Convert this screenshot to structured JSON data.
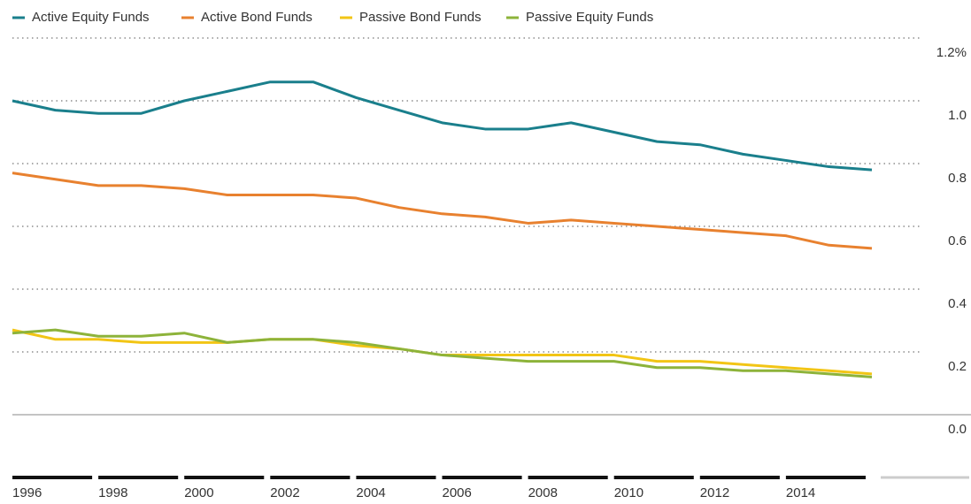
{
  "chart_data": {
    "type": "line",
    "x": [
      1996,
      1997,
      1998,
      1999,
      2000,
      2001,
      2002,
      2003,
      2004,
      2005,
      2006,
      2007,
      2008,
      2009,
      2010,
      2011,
      2012,
      2013,
      2014,
      2015,
      2016
    ],
    "series": [
      {
        "name": "Active Equity Funds",
        "color": "#1a7f8c",
        "values": [
          1.0,
          0.97,
          0.96,
          0.96,
          1.0,
          1.03,
          1.06,
          1.06,
          1.01,
          0.97,
          0.93,
          0.91,
          0.91,
          0.93,
          0.9,
          0.87,
          0.86,
          0.83,
          0.81,
          0.79,
          0.78
        ]
      },
      {
        "name": "Active Bond Funds",
        "color": "#e8812f",
        "values": [
          0.77,
          0.75,
          0.73,
          0.73,
          0.72,
          0.7,
          0.7,
          0.7,
          0.69,
          0.66,
          0.64,
          0.63,
          0.61,
          0.62,
          0.61,
          0.6,
          0.59,
          0.58,
          0.57,
          0.54,
          0.53
        ]
      },
      {
        "name": "Passive Bond Funds",
        "color": "#f2c515",
        "values": [
          0.27,
          0.24,
          0.24,
          0.23,
          0.23,
          0.23,
          0.24,
          0.24,
          0.22,
          0.21,
          0.19,
          0.19,
          0.19,
          0.19,
          0.19,
          0.17,
          0.17,
          0.16,
          0.15,
          0.14,
          0.13
        ]
      },
      {
        "name": "Passive Equity Funds",
        "color": "#8db33a",
        "values": [
          0.26,
          0.27,
          0.25,
          0.25,
          0.26,
          0.23,
          0.24,
          0.24,
          0.23,
          0.21,
          0.19,
          0.18,
          0.17,
          0.17,
          0.17,
          0.15,
          0.15,
          0.14,
          0.14,
          0.13,
          0.12
        ]
      }
    ],
    "xlim": [
      1996,
      2016
    ],
    "xticks": [
      1996,
      1998,
      2000,
      2002,
      2004,
      2006,
      2008,
      2010,
      2012,
      2014
    ],
    "ylim": [
      0,
      1.2
    ],
    "yticks": [
      {
        "value": 0,
        "label": "0.0"
      },
      0.2,
      0.4,
      0.6,
      0.8,
      {
        "value": 1,
        "label": "1.0"
      },
      {
        "value": 1.2,
        "label": "1.2%"
      }
    ],
    "grid": true,
    "legend": "top"
  }
}
